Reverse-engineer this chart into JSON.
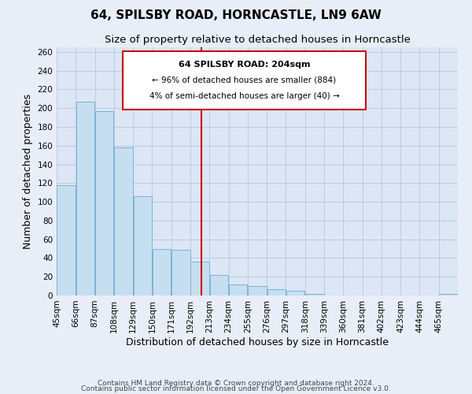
{
  "title": "64, SPILSBY ROAD, HORNCASTLE, LN9 6AW",
  "subtitle": "Size of property relative to detached houses in Horncastle",
  "xlabel": "Distribution of detached houses by size in Horncastle",
  "ylabel": "Number of detached properties",
  "bar_heights": [
    118,
    207,
    197,
    158,
    106,
    50,
    49,
    36,
    22,
    12,
    10,
    7,
    5,
    2,
    0,
    0,
    0,
    0,
    0,
    0,
    2
  ],
  "bin_labels": [
    "45sqm",
    "66sqm",
    "87sqm",
    "108sqm",
    "129sqm",
    "150sqm",
    "171sqm",
    "192sqm",
    "213sqm",
    "234sqm",
    "255sqm",
    "276sqm",
    "297sqm",
    "318sqm",
    "339sqm",
    "360sqm",
    "381sqm",
    "402sqm",
    "423sqm",
    "444sqm",
    "465sqm"
  ],
  "bin_edges": [
    45,
    66,
    87,
    108,
    129,
    150,
    171,
    192,
    213,
    234,
    255,
    276,
    297,
    318,
    339,
    360,
    381,
    402,
    423,
    444,
    465,
    486
  ],
  "bar_color": "#c6dff0",
  "bar_edgecolor": "#7bb3d4",
  "vline_x": 204,
  "vline_color": "#cc0000",
  "ylim": [
    0,
    265
  ],
  "yticks": [
    0,
    20,
    40,
    60,
    80,
    100,
    120,
    140,
    160,
    180,
    200,
    220,
    240,
    260
  ],
  "annotation_text_line1": "64 SPILSBY ROAD: 204sqm",
  "annotation_text_line2": "← 96% of detached houses are smaller (884)",
  "annotation_text_line3": "4% of semi-detached houses are larger (40) →",
  "footer_line1": "Contains HM Land Registry data © Crown copyright and database right 2024.",
  "footer_line2": "Contains public sector information licensed under the Open Government Licence v3.0.",
  "bg_color": "#e8eef8",
  "plot_bg_color": "#dce6f5",
  "grid_color": "#b8c8e0",
  "title_fontsize": 11,
  "subtitle_fontsize": 9.5,
  "axis_label_fontsize": 9,
  "tick_fontsize": 7.5,
  "footer_fontsize": 6.5
}
